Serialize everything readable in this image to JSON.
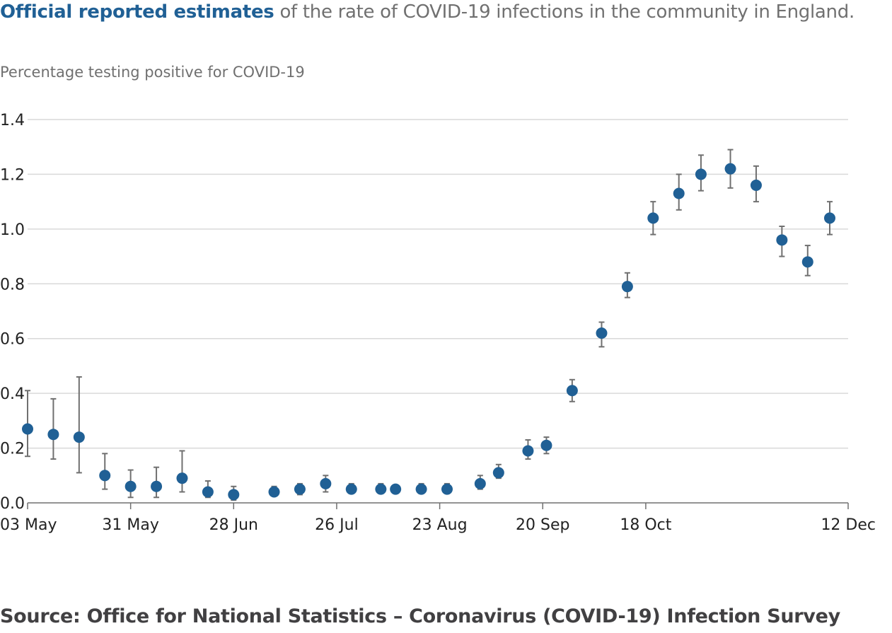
{
  "header": {
    "title_bold": "Official reported estimates",
    "title_rest": " of the rate of COVID-19 infections in the community in England."
  },
  "footer": {
    "source": "Source: Office for National Statistics – Coronavirus (COVID-19) Infection Survey"
  },
  "colors": {
    "point": "#206095",
    "error_bar": "#707070",
    "grid": "#d9d9d9",
    "axis": "#707070",
    "tick_text": "#222222"
  },
  "chart_data": {
    "type": "scatter",
    "ylabel": "Percentage testing positive for COVID-19",
    "xlabel": "",
    "ylim": [
      0,
      1.4
    ],
    "xlim": [
      "2020-05-03",
      "2020-12-12"
    ],
    "y_ticks": [
      0.0,
      0.2,
      0.4,
      0.6,
      0.8,
      1.0,
      1.2,
      1.4
    ],
    "y_tick_labels": [
      "0.0",
      "0.2",
      "0.4",
      "0.6",
      "0.8",
      "1.0",
      "1.2",
      "1.4"
    ],
    "x_ticks": [
      "2020-05-03",
      "2020-05-31",
      "2020-06-28",
      "2020-07-26",
      "2020-08-23",
      "2020-09-20",
      "2020-10-18",
      "2020-12-12"
    ],
    "x_tick_labels": [
      "03 May",
      "31 May",
      "28 Jun",
      "26 Jul",
      "23 Aug",
      "20 Sep",
      "18 Oct",
      "12 Dec"
    ],
    "grid": "horizontal",
    "legend": "none",
    "series": [
      {
        "points": [
          {
            "x": "2020-05-03",
            "y": 0.27,
            "lower": 0.17,
            "upper": 0.41
          },
          {
            "x": "2020-05-10",
            "y": 0.25,
            "lower": 0.16,
            "upper": 0.38
          },
          {
            "x": "2020-05-17",
            "y": 0.24,
            "lower": 0.11,
            "upper": 0.46
          },
          {
            "x": "2020-05-24",
            "y": 0.1,
            "lower": 0.05,
            "upper": 0.18
          },
          {
            "x": "2020-05-31",
            "y": 0.06,
            "lower": 0.02,
            "upper": 0.12
          },
          {
            "x": "2020-06-07",
            "y": 0.06,
            "lower": 0.02,
            "upper": 0.13
          },
          {
            "x": "2020-06-14",
            "y": 0.09,
            "lower": 0.04,
            "upper": 0.19
          },
          {
            "x": "2020-06-21",
            "y": 0.04,
            "lower": 0.02,
            "upper": 0.08
          },
          {
            "x": "2020-06-28",
            "y": 0.03,
            "lower": 0.01,
            "upper": 0.06
          },
          {
            "x": "2020-07-09",
            "y": 0.04,
            "lower": 0.03,
            "upper": 0.06
          },
          {
            "x": "2020-07-16",
            "y": 0.05,
            "lower": 0.03,
            "upper": 0.07
          },
          {
            "x": "2020-07-23",
            "y": 0.07,
            "lower": 0.04,
            "upper": 0.1
          },
          {
            "x": "2020-07-30",
            "y": 0.05,
            "lower": 0.04,
            "upper": 0.07
          },
          {
            "x": "2020-08-07",
            "y": 0.05,
            "lower": 0.04,
            "upper": 0.07
          },
          {
            "x": "2020-08-11",
            "y": 0.05,
            "lower": 0.04,
            "upper": 0.06
          },
          {
            "x": "2020-08-18",
            "y": 0.05,
            "lower": 0.04,
            "upper": 0.07
          },
          {
            "x": "2020-08-25",
            "y": 0.05,
            "lower": 0.04,
            "upper": 0.07
          },
          {
            "x": "2020-09-03",
            "y": 0.07,
            "lower": 0.05,
            "upper": 0.1
          },
          {
            "x": "2020-09-08",
            "y": 0.11,
            "lower": 0.09,
            "upper": 0.14
          },
          {
            "x": "2020-09-16",
            "y": 0.19,
            "lower": 0.16,
            "upper": 0.23
          },
          {
            "x": "2020-09-21",
            "y": 0.21,
            "lower": 0.18,
            "upper": 0.24
          },
          {
            "x": "2020-09-28",
            "y": 0.41,
            "lower": 0.37,
            "upper": 0.45
          },
          {
            "x": "2020-10-06",
            "y": 0.62,
            "lower": 0.57,
            "upper": 0.66
          },
          {
            "x": "2020-10-13",
            "y": 0.79,
            "lower": 0.75,
            "upper": 0.84
          },
          {
            "x": "2020-10-20",
            "y": 1.04,
            "lower": 0.98,
            "upper": 1.1
          },
          {
            "x": "2020-10-27",
            "y": 1.13,
            "lower": 1.07,
            "upper": 1.2
          },
          {
            "x": "2020-11-02",
            "y": 1.2,
            "lower": 1.14,
            "upper": 1.27
          },
          {
            "x": "2020-11-10",
            "y": 1.22,
            "lower": 1.15,
            "upper": 1.29
          },
          {
            "x": "2020-11-17",
            "y": 1.16,
            "lower": 1.1,
            "upper": 1.23
          },
          {
            "x": "2020-11-24",
            "y": 0.96,
            "lower": 0.9,
            "upper": 1.01
          },
          {
            "x": "2020-12-01",
            "y": 0.88,
            "lower": 0.83,
            "upper": 0.94
          },
          {
            "x": "2020-12-07",
            "y": 1.04,
            "lower": 0.98,
            "upper": 1.1
          }
        ]
      }
    ]
  }
}
